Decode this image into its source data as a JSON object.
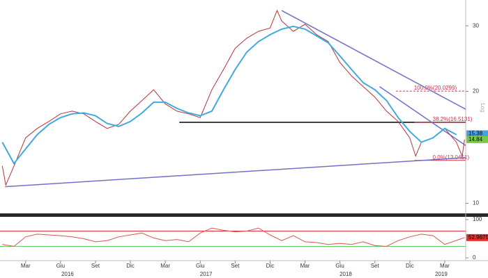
{
  "chart_data": [
    {
      "type": "line",
      "scale": "log",
      "axis_label": "Log",
      "xlim": [
        -0.2,
        39.8
      ],
      "ylim": [
        9.4,
        35.2
      ],
      "yticks": [
        10,
        20,
        30
      ],
      "series": [
        {
          "color": "#b8323a",
          "x": [
            0,
            0.3,
            1,
            2,
            3,
            4,
            5,
            6,
            7,
            8,
            9,
            10,
            11,
            12,
            13,
            14,
            15,
            16,
            17,
            18,
            19,
            20,
            21,
            22,
            23,
            23.6,
            24,
            25,
            26,
            27,
            28,
            29,
            30,
            31,
            32,
            33,
            34,
            35,
            35.5,
            36,
            37,
            38,
            39,
            39.5,
            39.7
          ],
          "values": [
            12.6,
            11.2,
            12.6,
            15.0,
            15.9,
            16.6,
            17.4,
            17.7,
            17.4,
            16.6,
            15.9,
            16.3,
            17.7,
            18.9,
            20.2,
            18.5,
            17.7,
            17.4,
            17.0,
            20.2,
            22.9,
            26.1,
            27.8,
            29.0,
            29.6,
            33.0,
            30.9,
            29.0,
            30.3,
            28.4,
            27.2,
            23.9,
            22.0,
            20.6,
            19.3,
            17.7,
            16.6,
            15.0,
            13.4,
            14.6,
            15.0,
            15.9,
            14.6,
            13.4,
            14.84
          ]
        },
        {
          "color": "#3fa9e0",
          "x": [
            0,
            1,
            2,
            3,
            4,
            5,
            6,
            7,
            8,
            9,
            10,
            11,
            12,
            13,
            14,
            15,
            16,
            17,
            18,
            19,
            20,
            21,
            22,
            23,
            24,
            25,
            26,
            27,
            28,
            29,
            30,
            31,
            32,
            33,
            34,
            35,
            36,
            37,
            38,
            39
          ],
          "values": [
            14.6,
            12.8,
            14.0,
            15.3,
            16.3,
            17.0,
            17.4,
            17.5,
            17.2,
            16.4,
            16.1,
            16.6,
            17.5,
            18.7,
            18.7,
            18.0,
            17.5,
            17.2,
            17.7,
            20.2,
            22.9,
            25.5,
            27.2,
            28.4,
            29.4,
            29.9,
            29.4,
            28.2,
            27.0,
            24.9,
            22.9,
            21.1,
            20.2,
            18.9,
            17.0,
            15.6,
            14.6,
            15.0,
            15.9,
            15.3
          ]
        }
      ],
      "trendlines": [
        {
          "color": "#7070c8",
          "x": [
            0.24,
            39.8
          ],
          "values": [
            11.09,
            13.27
          ]
        },
        {
          "color": "#7070c8",
          "x": [
            24.0,
            39.8
          ],
          "values": [
            32.97,
            17.9
          ]
        },
        {
          "color": "#7070c8",
          "x": [
            32.4,
            39.8
          ],
          "values": [
            20.6,
            14.3
          ]
        }
      ],
      "hlines": [
        {
          "value": 16.5131,
          "x_from": 15.2,
          "color": "#000000"
        }
      ],
      "levels": [
        {
          "value": 20.0299,
          "label": "100.0%(20.0299)",
          "x_from": 33.8,
          "color": "#d0304a",
          "dashed": true
        },
        {
          "value": 16.5131,
          "label": "38.2%(16.5131)",
          "x_from": 35.4,
          "color": "#d0304a",
          "dashed": false
        },
        {
          "value": 13.0451,
          "label": "0.0%(13.0451)",
          "x_from": 35.4,
          "color": "#d0304a",
          "dashed": false
        }
      ],
      "markers": [
        {
          "value": 15.38,
          "color": "#4a9fdc"
        },
        {
          "value": 14.84,
          "color": "#7ac943"
        }
      ]
    },
    {
      "type": "line",
      "xlim": [
        -0.2,
        39.8
      ],
      "ylim": [
        -7.3,
        107.3
      ],
      "yticks": [
        0,
        100
      ],
      "bands": [
        {
          "value": 70,
          "color": "#e03030"
        },
        {
          "value": 30,
          "color": "#5fd35f"
        }
      ],
      "series": [
        {
          "color": "#e05050",
          "x": [
            0,
            1,
            2,
            3,
            4,
            5,
            6,
            7,
            8,
            9,
            10,
            11,
            12,
            13,
            14,
            15,
            16,
            17,
            18,
            19,
            20,
            21,
            22,
            23,
            24,
            25,
            26,
            27,
            28,
            29,
            30,
            31,
            32,
            33,
            34,
            35,
            36,
            37,
            38,
            39.7
          ],
          "values": [
            35,
            30,
            55,
            62,
            60,
            58,
            55,
            50,
            42,
            45,
            55,
            60,
            65,
            52,
            45,
            48,
            42,
            65,
            78,
            72,
            68,
            70,
            78,
            60,
            45,
            58,
            42,
            40,
            35,
            38,
            35,
            42,
            32,
            30,
            45,
            55,
            62,
            58,
            35,
            52.9675
          ]
        }
      ],
      "markers": [
        {
          "value": 52.9675,
          "color": "#e03030"
        }
      ],
      "xticks": [
        {
          "value": 2,
          "label": "Mar"
        },
        {
          "value": 5,
          "label": "Giu"
        },
        {
          "value": 8,
          "label": "Set"
        },
        {
          "value": 11,
          "label": "Dic"
        },
        {
          "value": 14,
          "label": "Mar"
        },
        {
          "value": 17,
          "label": "Giu"
        },
        {
          "value": 20,
          "label": "Set"
        },
        {
          "value": 23,
          "label": "Dic"
        },
        {
          "value": 26,
          "label": "Mar"
        },
        {
          "value": 29,
          "label": "Giu"
        },
        {
          "value": 32,
          "label": "Set"
        },
        {
          "value": 35,
          "label": "Dic"
        },
        {
          "value": 38,
          "label": "Mar"
        }
      ],
      "year_labels": [
        {
          "value": 5.6,
          "label": "2016"
        },
        {
          "value": 17.5,
          "label": "2017"
        },
        {
          "value": 29.5,
          "label": "2018"
        },
        {
          "value": 37.7,
          "label": "2019"
        }
      ]
    }
  ]
}
